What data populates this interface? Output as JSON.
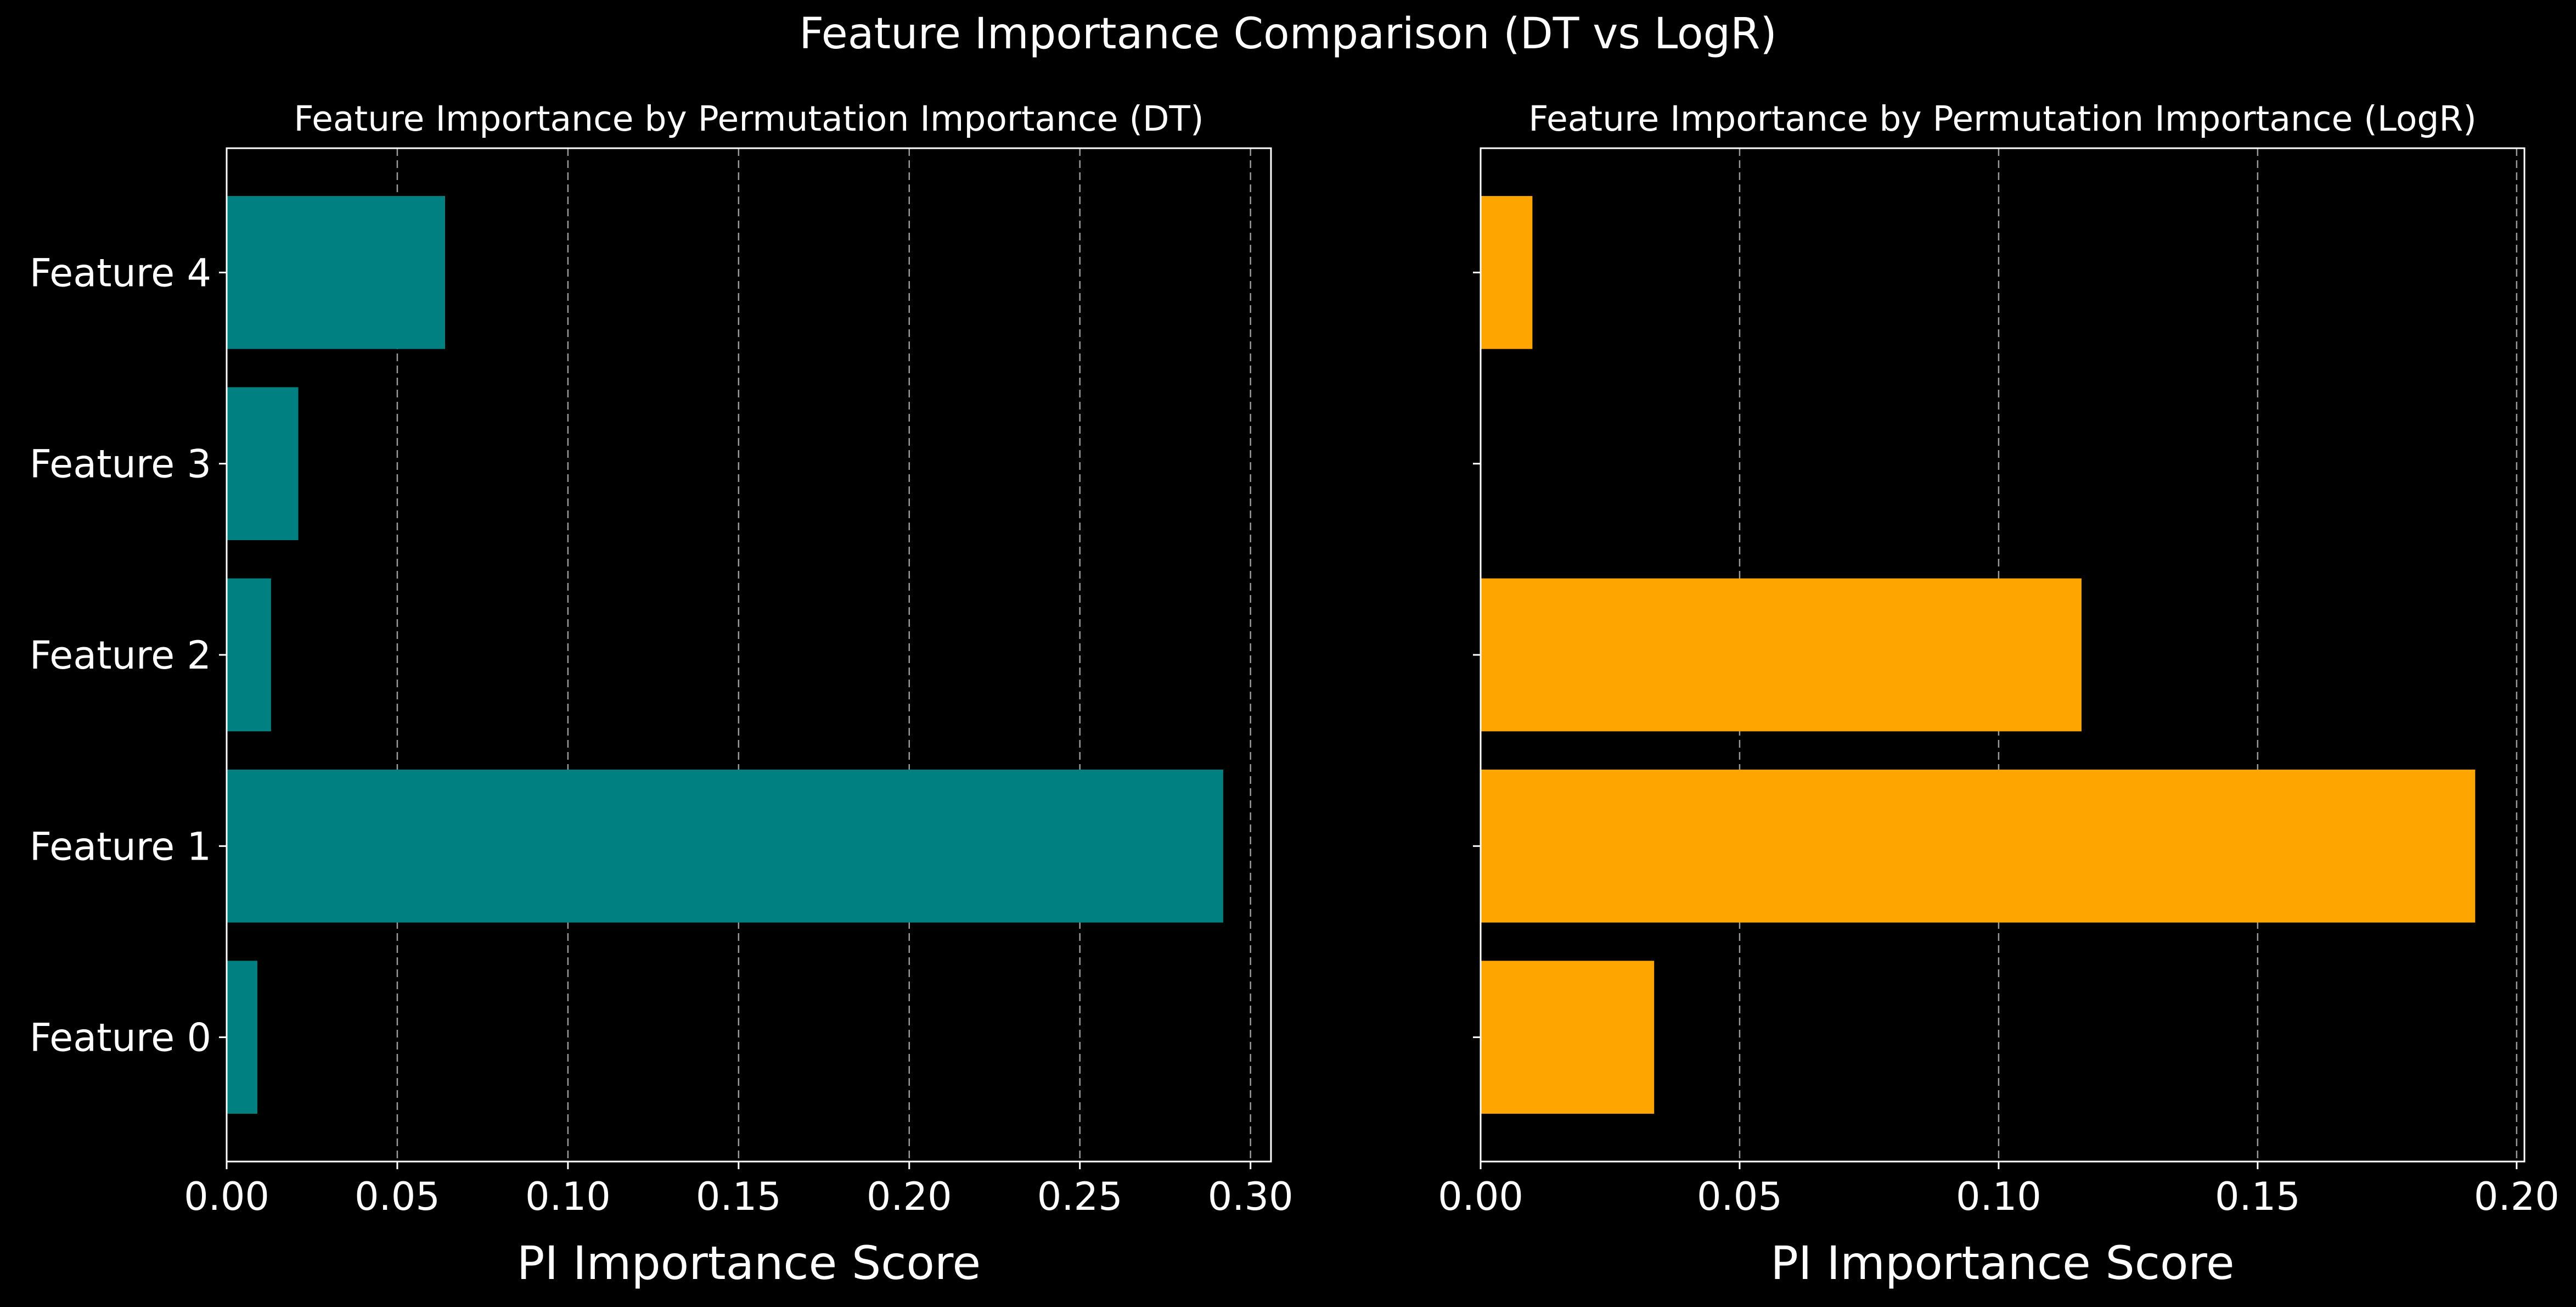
{
  "figure": {
    "title": "Feature Importance Comparison (DT vs LogR)"
  },
  "chart_data": [
    {
      "type": "bar",
      "orientation": "horizontal",
      "title": "Feature Importance by Permutation Importance (DT)",
      "xlabel": "PI Importance Score",
      "ylabel": "",
      "categories": [
        "Feature 0",
        "Feature 1",
        "Feature 2",
        "Feature 3",
        "Feature 4"
      ],
      "values": [
        0.009,
        0.292,
        0.013,
        0.021,
        0.064
      ],
      "color": "#008080",
      "xlim": [
        0,
        0.306
      ],
      "xticks": [
        0.0,
        0.05,
        0.1,
        0.15,
        0.2,
        0.25,
        0.3
      ],
      "xtick_labels": [
        "0.00",
        "0.05",
        "0.10",
        "0.15",
        "0.20",
        "0.25",
        "0.30"
      ],
      "grid": "x-axis, dashed",
      "legend": "none"
    },
    {
      "type": "bar",
      "orientation": "horizontal",
      "title": "Feature Importance by Permutation Importance (LogR)",
      "xlabel": "PI Importance Score",
      "ylabel": "",
      "categories": [
        "Feature 0",
        "Feature 1",
        "Feature 2",
        "Feature 3",
        "Feature 4"
      ],
      "values": [
        0.0335,
        0.192,
        0.116,
        0.0,
        0.01
      ],
      "color": "#FFA500",
      "xlim": [
        0,
        0.2015
      ],
      "xticks": [
        0.0,
        0.05,
        0.1,
        0.15,
        0.2
      ],
      "xtick_labels": [
        "0.00",
        "0.05",
        "0.10",
        "0.15",
        "0.20"
      ],
      "grid": "x-axis, dashed",
      "legend": "none",
      "shared_y_labels_hidden": true
    }
  ]
}
